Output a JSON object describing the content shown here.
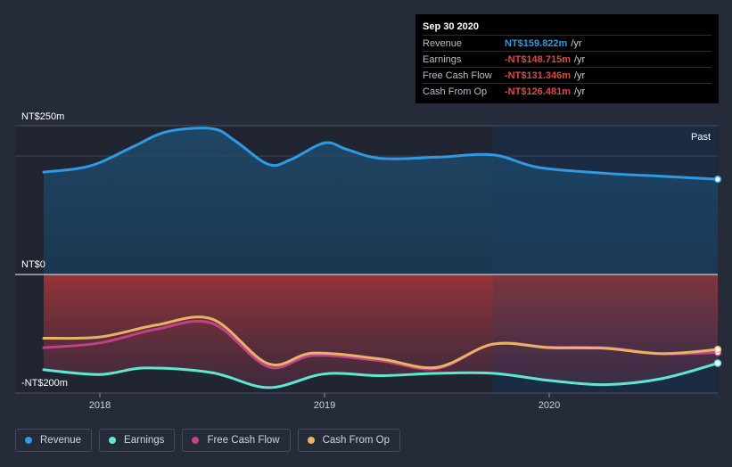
{
  "chart_data": {
    "type": "line",
    "title": "",
    "xlabel": "",
    "ylabel": "",
    "y_tick_labels": [
      "NT$250m",
      "NT$0",
      "-NT$200m"
    ],
    "ylim": [
      -200,
      250
    ],
    "x_ticks": [
      {
        "label": "2018",
        "t": 2018.0
      },
      {
        "label": "2019",
        "t": 2019.0
      },
      {
        "label": "2020",
        "t": 2020.0
      }
    ],
    "xlim": [
      2017.72,
      2020.75
    ],
    "past_label": "Past",
    "past_start": 2019.75,
    "series": [
      {
        "name": "Revenue",
        "color": "#2f9ae3",
        "points": [
          [
            2017.75,
            172
          ],
          [
            2017.9,
            178
          ],
          [
            2018.0,
            188
          ],
          [
            2018.15,
            215
          ],
          [
            2018.3,
            240
          ],
          [
            2018.5,
            245
          ],
          [
            2018.6,
            225
          ],
          [
            2018.75,
            185
          ],
          [
            2018.85,
            193
          ],
          [
            2019.0,
            221
          ],
          [
            2019.1,
            210
          ],
          [
            2019.25,
            195
          ],
          [
            2019.5,
            197
          ],
          [
            2019.75,
            201
          ],
          [
            2019.95,
            180
          ],
          [
            2020.25,
            170
          ],
          [
            2020.5,
            165
          ],
          [
            2020.75,
            160
          ]
        ]
      },
      {
        "name": "Earnings",
        "color": "#5ee8d3",
        "points": [
          [
            2017.75,
            -160
          ],
          [
            2018.0,
            -168
          ],
          [
            2018.2,
            -157
          ],
          [
            2018.5,
            -165
          ],
          [
            2018.75,
            -190
          ],
          [
            2019.0,
            -167
          ],
          [
            2019.25,
            -170
          ],
          [
            2019.5,
            -166
          ],
          [
            2019.75,
            -166
          ],
          [
            2020.0,
            -178
          ],
          [
            2020.25,
            -185
          ],
          [
            2020.5,
            -175
          ],
          [
            2020.75,
            -149
          ]
        ]
      },
      {
        "name": "Free Cash Flow",
        "color": "#c2418a",
        "points": [
          [
            2017.75,
            -123
          ],
          [
            2018.0,
            -115
          ],
          [
            2018.25,
            -92
          ],
          [
            2018.5,
            -82
          ],
          [
            2018.75,
            -155
          ],
          [
            2018.95,
            -136
          ],
          [
            2019.25,
            -145
          ],
          [
            2019.5,
            -158
          ],
          [
            2019.75,
            -117
          ],
          [
            2020.0,
            -122
          ],
          [
            2020.25,
            -123
          ],
          [
            2020.5,
            -133
          ],
          [
            2020.75,
            -131
          ]
        ]
      },
      {
        "name": "Cash From Op",
        "color": "#e8b365",
        "points": [
          [
            2017.75,
            -107
          ],
          [
            2018.0,
            -105
          ],
          [
            2018.25,
            -85
          ],
          [
            2018.5,
            -75
          ],
          [
            2018.75,
            -150
          ],
          [
            2018.95,
            -132
          ],
          [
            2019.25,
            -142
          ],
          [
            2019.5,
            -156
          ],
          [
            2019.75,
            -117
          ],
          [
            2020.0,
            -123
          ],
          [
            2020.25,
            -124
          ],
          [
            2020.5,
            -133
          ],
          [
            2020.75,
            -126
          ]
        ]
      }
    ]
  },
  "tooltip": {
    "date": "Sep 30 2020",
    "rows": [
      {
        "label": "Revenue",
        "value": "NT$159.822m",
        "unit": "/yr",
        "kind": "pos"
      },
      {
        "label": "Earnings",
        "value": "-NT$148.715m",
        "unit": "/yr",
        "kind": "neg"
      },
      {
        "label": "Free Cash Flow",
        "value": "-NT$131.346m",
        "unit": "/yr",
        "kind": "neg"
      },
      {
        "label": "Cash From Op",
        "value": "-NT$126.481m",
        "unit": "/yr",
        "kind": "neg"
      }
    ]
  },
  "legend": [
    {
      "label": "Revenue",
      "color": "#2f9ae3"
    },
    {
      "label": "Earnings",
      "color": "#5ee8d3"
    },
    {
      "label": "Free Cash Flow",
      "color": "#c2418a"
    },
    {
      "label": "Cash From Op",
      "color": "#e8b365"
    }
  ]
}
